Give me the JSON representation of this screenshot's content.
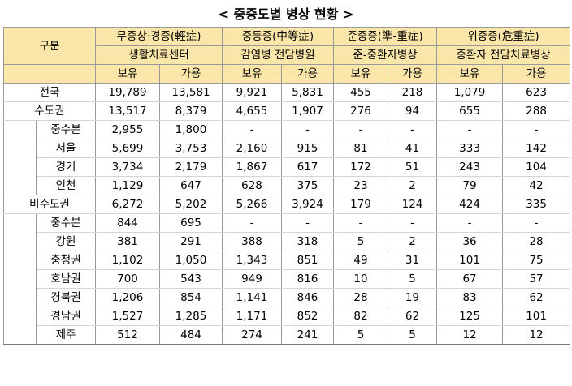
{
  "title": "< 중증도별 병상 현황 >",
  "header": {
    "category": "구분",
    "groups": [
      {
        "level": "무증상·경증(輕症)",
        "facility": "생활치료센터"
      },
      {
        "level": "중등증(中等症)",
        "facility": "감염병 전담병원"
      },
      {
        "level": "준중증(準-重症)",
        "facility": "준-중환자병상"
      },
      {
        "level": "위중증(危重症)",
        "facility": "중환자 전담치료병상"
      }
    ],
    "held": "보유",
    "available": "가용"
  },
  "rows": [
    {
      "name": "전국",
      "indent": false,
      "values": [
        "19,789",
        "13,581",
        "9,921",
        "5,831",
        "455",
        "218",
        "1,079",
        "623"
      ]
    },
    {
      "name": "수도권",
      "indent": false,
      "values": [
        "13,517",
        "8,379",
        "4,655",
        "1,907",
        "276",
        "94",
        "655",
        "288"
      ]
    },
    {
      "name": "중수본",
      "indent": true,
      "values": [
        "2,955",
        "1,800",
        "-",
        "-",
        "-",
        "-",
        "-",
        "-"
      ]
    },
    {
      "name": "서울",
      "indent": true,
      "values": [
        "5,699",
        "3,753",
        "2,160",
        "915",
        "81",
        "41",
        "333",
        "142"
      ]
    },
    {
      "name": "경기",
      "indent": true,
      "values": [
        "3,734",
        "2,179",
        "1,867",
        "617",
        "172",
        "51",
        "243",
        "104"
      ]
    },
    {
      "name": "인천",
      "indent": true,
      "values": [
        "1,129",
        "647",
        "628",
        "375",
        "23",
        "2",
        "79",
        "42"
      ]
    },
    {
      "name": "비수도권",
      "indent": false,
      "values": [
        "6,272",
        "5,202",
        "5,266",
        "3,924",
        "179",
        "124",
        "424",
        "335"
      ]
    },
    {
      "name": "중수본",
      "indent": true,
      "values": [
        "844",
        "695",
        "-",
        "-",
        "-",
        "-",
        "-",
        "-"
      ]
    },
    {
      "name": "강원",
      "indent": true,
      "values": [
        "381",
        "291",
        "388",
        "318",
        "5",
        "2",
        "36",
        "28"
      ]
    },
    {
      "name": "충청권",
      "indent": true,
      "values": [
        "1,102",
        "1,050",
        "1,343",
        "851",
        "49",
        "31",
        "101",
        "75"
      ]
    },
    {
      "name": "호남권",
      "indent": true,
      "values": [
        "700",
        "543",
        "949",
        "816",
        "10",
        "5",
        "67",
        "57"
      ]
    },
    {
      "name": "경북권",
      "indent": true,
      "values": [
        "1,206",
        "854",
        "1,141",
        "846",
        "28",
        "19",
        "83",
        "62"
      ]
    },
    {
      "name": "경남권",
      "indent": true,
      "values": [
        "1,527",
        "1,285",
        "1,171",
        "852",
        "82",
        "62",
        "125",
        "101"
      ]
    },
    {
      "name": "제주",
      "indent": true,
      "values": [
        "512",
        "484",
        "274",
        "241",
        "5",
        "5",
        "12",
        "12"
      ]
    }
  ]
}
